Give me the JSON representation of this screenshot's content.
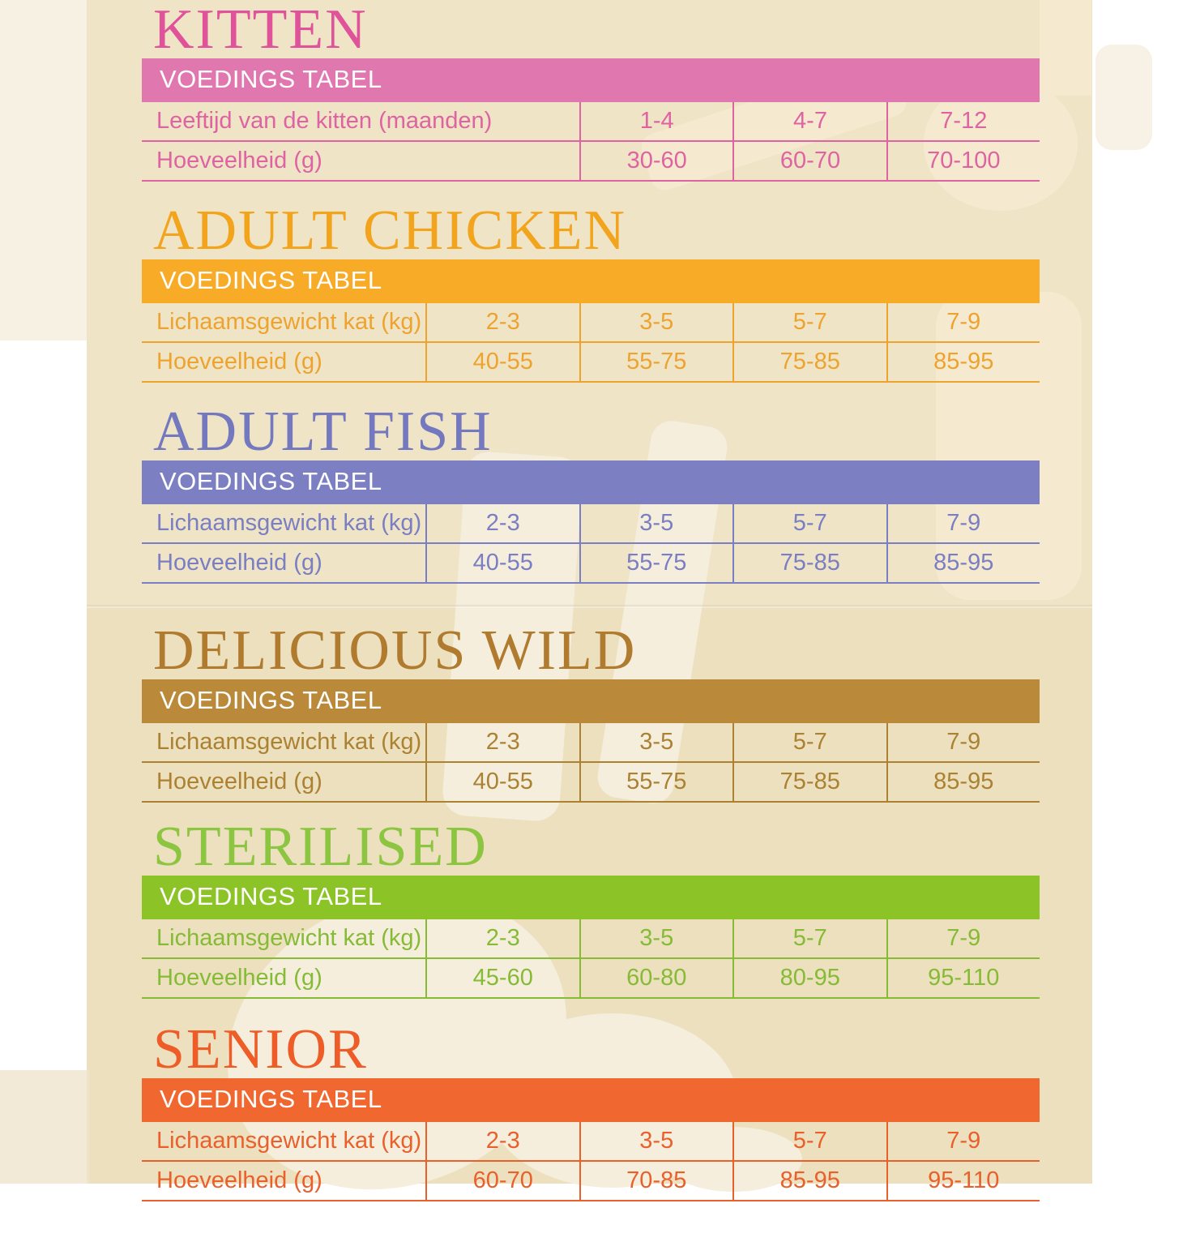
{
  "document": {
    "language": "Dutch",
    "description_visible_text_only": true
  },
  "sections": [
    {
      "id": "kitten",
      "title": "KITTEN",
      "header_label": "VOEDINGS TABEL",
      "colors": {
        "title": "#e0529a",
        "bar": "#e077ae",
        "text": "#df63a2"
      },
      "rows": [
        {
          "label": "Leeftijd van de kitten (maanden)",
          "values": [
            "1-4",
            "4-7",
            "7-12"
          ]
        },
        {
          "label": "Hoeveelheid (g)",
          "values": [
            "30-60",
            "60-70",
            "70-100"
          ]
        }
      ]
    },
    {
      "id": "adult-chicken",
      "title": "ADULT CHICKEN",
      "header_label": "VOEDINGS TABEL",
      "colors": {
        "title": "#f3a41d",
        "bar": "#f7ab26",
        "text": "#eda32d"
      },
      "rows": [
        {
          "label": "Lichaamsgewicht kat (kg)",
          "values": [
            "2-3",
            "3-5",
            "5-7",
            "7-9"
          ]
        },
        {
          "label": "Hoeveelheid (g)",
          "values": [
            "40-55",
            "55-75",
            "75-85",
            "85-95"
          ]
        }
      ]
    },
    {
      "id": "adult-fish",
      "title": "ADULT FISH",
      "header_label": "VOEDINGS TABEL",
      "colors": {
        "title": "#7478bf",
        "bar": "#7c80c3",
        "text": "#7a7ec2"
      },
      "rows": [
        {
          "label": "Lichaamsgewicht kat (kg)",
          "values": [
            "2-3",
            "3-5",
            "5-7",
            "7-9"
          ]
        },
        {
          "label": "Hoeveelheid (g)",
          "values": [
            "40-55",
            "55-75",
            "75-85",
            "85-95"
          ]
        }
      ]
    },
    {
      "id": "delicious-wild",
      "title": "DELICIOUS WILD",
      "header_label": "VOEDINGS TABEL",
      "colors": {
        "title": "#b07b2e",
        "bar": "#ba8a3a",
        "text": "#ab8132"
      },
      "rows": [
        {
          "label": "Lichaamsgewicht kat (kg)",
          "values": [
            "2-3",
            "3-5",
            "5-7",
            "7-9"
          ]
        },
        {
          "label": "Hoeveelheid (g)",
          "values": [
            "40-55",
            "55-75",
            "75-85",
            "85-95"
          ]
        }
      ]
    },
    {
      "id": "sterilised",
      "title": "STERILISED",
      "header_label": "VOEDINGS TABEL",
      "colors": {
        "title": "#8cc540",
        "bar": "#8cc428",
        "text": "#85bb35"
      },
      "rows": [
        {
          "label": "Lichaamsgewicht kat (kg)",
          "values": [
            "2-3",
            "3-5",
            "5-7",
            "7-9"
          ]
        },
        {
          "label": "Hoeveelheid (g)",
          "values": [
            "45-60",
            "60-80",
            "80-95",
            "95-110"
          ]
        }
      ]
    },
    {
      "id": "senior",
      "title": "SENIOR",
      "header_label": "VOEDINGS TABEL",
      "colors": {
        "title": "#ee5c28",
        "bar": "#f0682f",
        "text": "#e9602b"
      },
      "rows": [
        {
          "label": "Lichaamsgewicht kat (kg)",
          "values": [
            "2-3",
            "3-5",
            "5-7",
            "7-9"
          ]
        },
        {
          "label": "Hoeveelheid (g)",
          "values": [
            "60-70",
            "70-85",
            "85-95",
            "95-110"
          ]
        }
      ]
    }
  ]
}
